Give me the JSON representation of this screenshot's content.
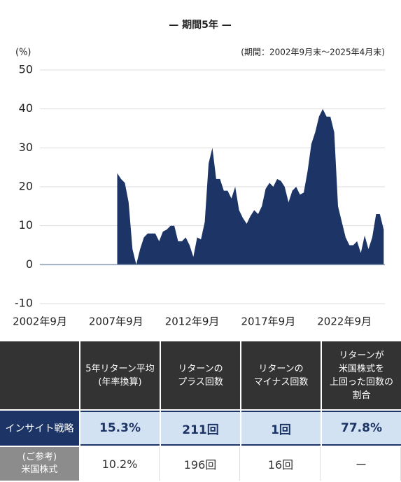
{
  "chart_data": {
    "type": "area",
    "title": "— 期間5年 —",
    "y_unit": "(%)",
    "period_note": "(期間：2002年9月末～2025年4月末)",
    "color": "#1d3566",
    "x": [
      2007.75,
      2008,
      2008.25,
      2008.5,
      2008.75,
      2009,
      2009.25,
      2009.5,
      2009.75,
      2010,
      2010.25,
      2010.5,
      2010.75,
      2011,
      2011.25,
      2011.5,
      2011.75,
      2012,
      2012.25,
      2012.5,
      2012.75,
      2013,
      2013.25,
      2013.5,
      2013.75,
      2014,
      2014.25,
      2014.5,
      2014.75,
      2015,
      2015.25,
      2015.5,
      2015.75,
      2016,
      2016.25,
      2016.5,
      2016.75,
      2017,
      2017.25,
      2017.5,
      2017.75,
      2018,
      2018.25,
      2018.5,
      2018.75,
      2019,
      2019.25,
      2019.5,
      2019.75,
      2020,
      2020.25,
      2020.5,
      2020.75,
      2021,
      2021.25,
      2021.5,
      2021.75,
      2022,
      2022.25,
      2022.5,
      2022.75,
      2023,
      2023.25,
      2023.5,
      2023.75,
      2024,
      2024.25,
      2024.5,
      2024.75,
      2025,
      2025.25
    ],
    "values": [
      23.5,
      22,
      21,
      16,
      4,
      0,
      4,
      7,
      8,
      8,
      8,
      6,
      8.5,
      9,
      10,
      10,
      6,
      6,
      7,
      5,
      2,
      7,
      6.5,
      11,
      26,
      30,
      22,
      22,
      19,
      19,
      17,
      20,
      14,
      12,
      10.5,
      12.5,
      14,
      13,
      15,
      19.5,
      21,
      20,
      22,
      21.5,
      20,
      16,
      19,
      20,
      18,
      18.5,
      24,
      31,
      34,
      38,
      40,
      38,
      38,
      34,
      15,
      11,
      7,
      5,
      5,
      6,
      3,
      7.5,
      4,
      7,
      13,
      13,
      9
    ],
    "xlim": [
      2002.67,
      2025.33
    ],
    "xticks": [
      {
        "value": 2002.67,
        "label": "2002年9月"
      },
      {
        "value": 2007.67,
        "label": "2007年9月"
      },
      {
        "value": 2012.67,
        "label": "2012年9月"
      },
      {
        "value": 2017.67,
        "label": "2017年9月"
      },
      {
        "value": 2022.67,
        "label": "2022年9月"
      }
    ],
    "ylim": [
      -10,
      50
    ],
    "yticks": [
      -10,
      0,
      10,
      20,
      30,
      40,
      50
    ],
    "grid": true
  },
  "table": {
    "headers": [
      [
        "5年リターン平均",
        "(年率換算)"
      ],
      [
        "リターンの",
        "プラス回数"
      ],
      [
        "リターンの",
        "マイナス回数"
      ],
      [
        "リターンが",
        "米国株式を",
        "上回った回数の",
        "割合"
      ]
    ],
    "rows": [
      [
        [
          "インサイト戦略"
        ],
        "15.3%",
        "211回",
        "1回",
        "77.8%"
      ],
      [
        [
          "(ご参考)",
          "米国株式"
        ],
        "10.2%",
        "196回",
        "16回",
        "ー"
      ]
    ]
  }
}
